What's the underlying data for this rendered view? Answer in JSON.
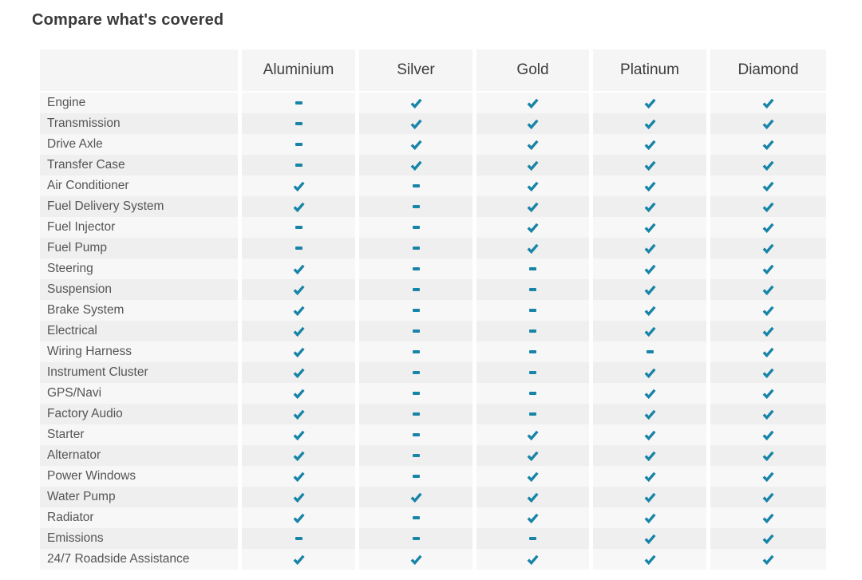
{
  "page": {
    "title": "Compare what's covered"
  },
  "colors": {
    "accent": "#1784a8",
    "header_bg": "#f5f5f5",
    "row_light": "#f7f7f7",
    "row_dark": "#efefef",
    "title_color": "#3a3a3a",
    "label_color": "#555555"
  },
  "legend": {
    "covered_icon": "check-icon",
    "not_covered_icon": "dash-icon"
  },
  "table": {
    "columns": [
      "Aluminium",
      "Silver",
      "Gold",
      "Platinum",
      "Diamond"
    ],
    "rows": [
      {
        "label": "Engine",
        "values": [
          "dash",
          "check",
          "check",
          "check",
          "check"
        ]
      },
      {
        "label": "Transmission",
        "values": [
          "dash",
          "check",
          "check",
          "check",
          "check"
        ]
      },
      {
        "label": "Drive Axle",
        "values": [
          "dash",
          "check",
          "check",
          "check",
          "check"
        ]
      },
      {
        "label": "Transfer Case",
        "values": [
          "dash",
          "check",
          "check",
          "check",
          "check"
        ]
      },
      {
        "label": "Air Conditioner",
        "values": [
          "check",
          "dash",
          "check",
          "check",
          "check"
        ]
      },
      {
        "label": "Fuel Delivery System",
        "values": [
          "check",
          "dash",
          "check",
          "check",
          "check"
        ]
      },
      {
        "label": "Fuel Injector",
        "values": [
          "dash",
          "dash",
          "check",
          "check",
          "check"
        ]
      },
      {
        "label": "Fuel Pump",
        "values": [
          "dash",
          "dash",
          "check",
          "check",
          "check"
        ]
      },
      {
        "label": "Steering",
        "values": [
          "check",
          "dash",
          "dash",
          "check",
          "check"
        ]
      },
      {
        "label": "Suspension",
        "values": [
          "check",
          "dash",
          "dash",
          "check",
          "check"
        ]
      },
      {
        "label": "Brake System",
        "values": [
          "check",
          "dash",
          "dash",
          "check",
          "check"
        ]
      },
      {
        "label": "Electrical",
        "values": [
          "check",
          "dash",
          "dash",
          "check",
          "check"
        ]
      },
      {
        "label": "Wiring Harness",
        "values": [
          "check",
          "dash",
          "dash",
          "dash",
          "check"
        ]
      },
      {
        "label": "Instrument Cluster",
        "values": [
          "check",
          "dash",
          "dash",
          "check",
          "check"
        ]
      },
      {
        "label": "GPS/Navi",
        "values": [
          "check",
          "dash",
          "dash",
          "check",
          "check"
        ]
      },
      {
        "label": "Factory Audio",
        "values": [
          "check",
          "dash",
          "dash",
          "check",
          "check"
        ]
      },
      {
        "label": "Starter",
        "values": [
          "check",
          "dash",
          "check",
          "check",
          "check"
        ]
      },
      {
        "label": "Alternator",
        "values": [
          "check",
          "dash",
          "check",
          "check",
          "check"
        ]
      },
      {
        "label": "Power Windows",
        "values": [
          "check",
          "dash",
          "check",
          "check",
          "check"
        ]
      },
      {
        "label": "Water Pump",
        "values": [
          "check",
          "check",
          "check",
          "check",
          "check"
        ]
      },
      {
        "label": "Radiator",
        "values": [
          "check",
          "dash",
          "check",
          "check",
          "check"
        ]
      },
      {
        "label": "Emissions",
        "values": [
          "dash",
          "dash",
          "dash",
          "check",
          "check"
        ]
      },
      {
        "label": "24/7 Roadside Assistance",
        "values": [
          "check",
          "check",
          "check",
          "check",
          "check"
        ]
      }
    ]
  }
}
